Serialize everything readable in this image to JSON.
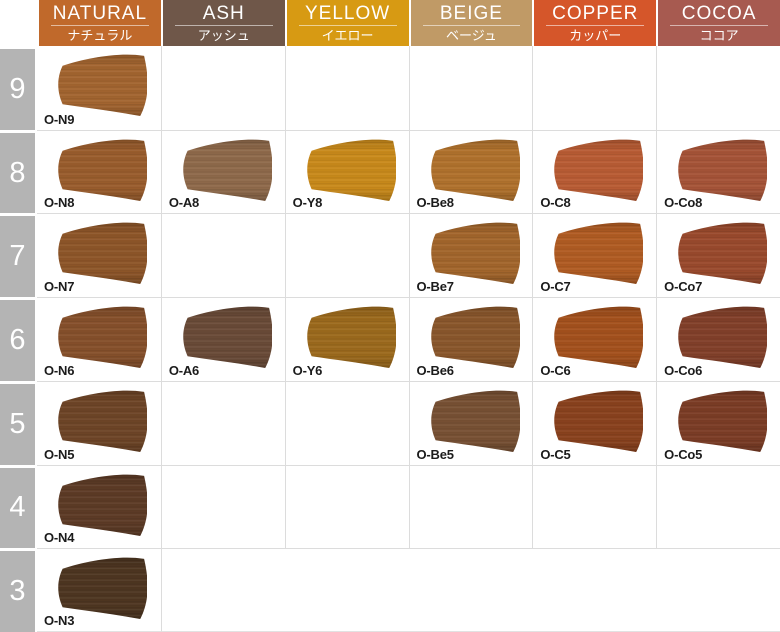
{
  "chart_data": {
    "type": "table",
    "title": "Hair color tone / level swatch chart",
    "columns": [
      {
        "key": "natural",
        "en": "NATURAL",
        "ja": "ナチュラル",
        "header_color": "#c0692b"
      },
      {
        "key": "ash",
        "en": "ASH",
        "ja": "アッシュ",
        "header_color": "#6f5749"
      },
      {
        "key": "yellow",
        "en": "YELLOW",
        "ja": "イエロー",
        "header_color": "#d79a13"
      },
      {
        "key": "beige",
        "en": "BEIGE",
        "ja": "ベージュ",
        "header_color": "#c09a66"
      },
      {
        "key": "copper",
        "en": "COPPER",
        "ja": "カッパー",
        "header_color": "#d5562a"
      },
      {
        "key": "cocoa",
        "en": "COCOA",
        "ja": "ココア",
        "header_color": "#a75a50"
      }
    ],
    "rows": [
      {
        "level": "9",
        "swatches": [
          {
            "code": "O-N9",
            "color": "#a36530"
          },
          null,
          null,
          null,
          null,
          null
        ]
      },
      {
        "level": "8",
        "swatches": [
          {
            "code": "O-N8",
            "color": "#9a5d2d"
          },
          {
            "code": "O-A8",
            "color": "#8f6a4b"
          },
          {
            "code": "O-Y8",
            "color": "#c98a1b"
          },
          {
            "code": "O-Be8",
            "color": "#b1722d"
          },
          {
            "code": "O-C8",
            "color": "#b95c34"
          },
          {
            "code": "O-Co8",
            "color": "#a65438"
          }
        ]
      },
      {
        "level": "7",
        "swatches": [
          {
            "code": "O-N7",
            "color": "#8e5629"
          },
          null,
          null,
          {
            "code": "O-Be7",
            "color": "#a3662c"
          },
          {
            "code": "O-C7",
            "color": "#b15c23"
          },
          {
            "code": "O-Co7",
            "color": "#9a4a2d"
          }
        ]
      },
      {
        "level": "6",
        "swatches": [
          {
            "code": "O-N6",
            "color": "#86502b"
          },
          {
            "code": "O-A6",
            "color": "#6a4b38"
          },
          {
            "code": "O-Y6",
            "color": "#9c6a1d"
          },
          {
            "code": "O-Be6",
            "color": "#8a572c"
          },
          {
            "code": "O-C6",
            "color": "#a4511d"
          },
          {
            "code": "O-Co6",
            "color": "#82402a"
          }
        ]
      },
      {
        "level": "5",
        "swatches": [
          {
            "code": "O-N5",
            "color": "#6e4527"
          },
          null,
          null,
          {
            "code": "O-Be5",
            "color": "#785134"
          },
          {
            "code": "O-C5",
            "color": "#8a421e"
          },
          {
            "code": "O-Co5",
            "color": "#7c3d26"
          }
        ]
      },
      {
        "level": "4",
        "swatches": [
          {
            "code": "O-N4",
            "color": "#5d3b26"
          },
          null,
          null,
          null,
          null,
          null
        ]
      },
      {
        "level": "3",
        "swatches": [
          {
            "code": "O-N3",
            "color": "#4e3621"
          },
          null,
          null,
          null,
          null,
          null
        ]
      }
    ]
  },
  "palette": {
    "row_number_bg": "#b4b4b4",
    "grid_line": "#dcdcdc",
    "cell_bg": "#ffffff",
    "header_text": "#ffffff",
    "code_text": "#1b1b1b"
  }
}
